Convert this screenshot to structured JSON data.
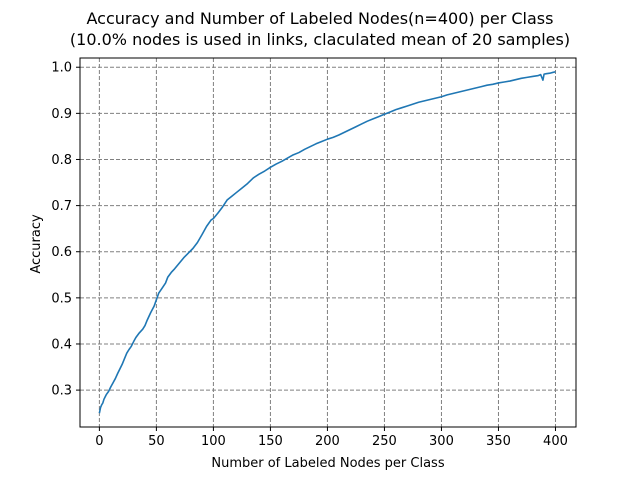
{
  "chart_data": {
    "type": "line",
    "title": "Accuracy and Number of Labeled Nodes(n=400) per Class",
    "subtitle": "(10.0% nodes is used in links, claculated mean of 20 samples)",
    "xlabel": "Number of Labeled Nodes per Class",
    "ylabel": "Accuracy",
    "xlim": [
      -17,
      418
    ],
    "ylim": [
      0.22,
      1.02
    ],
    "xticks": [
      0,
      50,
      100,
      150,
      200,
      250,
      300,
      350,
      400
    ],
    "yticks": [
      0.3,
      0.4,
      0.5,
      0.6,
      0.7,
      0.8,
      0.9,
      1.0
    ],
    "xtick_labels": [
      "0",
      "50",
      "100",
      "150",
      "200",
      "250",
      "300",
      "350",
      "400"
    ],
    "ytick_labels": [
      "0.3",
      "0.4",
      "0.5",
      "0.6",
      "0.7",
      "0.8",
      "0.9",
      "1.0"
    ],
    "grid": true,
    "line_color": "#1f77b4",
    "grid_color": "#808080",
    "series": [
      {
        "x": [
          0,
          1,
          2,
          3,
          4,
          5,
          6,
          8,
          10,
          12,
          14,
          16,
          18,
          20,
          22,
          24,
          26,
          28,
          30,
          32,
          35,
          38,
          40,
          42,
          45,
          48,
          50,
          52,
          55,
          58,
          60,
          63,
          66,
          70,
          74,
          78,
          82,
          86,
          90,
          94,
          98,
          100,
          104,
          108,
          112,
          116,
          120,
          125,
          130,
          135,
          140,
          145,
          150,
          155,
          160,
          165,
          170,
          175,
          180,
          185,
          190,
          195,
          200,
          205,
          210,
          215,
          220,
          225,
          230,
          235,
          240,
          245,
          250,
          255,
          260,
          265,
          270,
          275,
          280,
          285,
          290,
          295,
          300,
          305,
          310,
          315,
          320,
          325,
          330,
          335,
          340,
          345,
          350,
          355,
          360,
          365,
          370,
          375,
          380,
          385,
          387,
          388,
          389,
          390,
          392,
          395,
          398,
          400
        ],
        "y": [
          0.25,
          0.262,
          0.268,
          0.272,
          0.28,
          0.285,
          0.29,
          0.297,
          0.307,
          0.316,
          0.325,
          0.336,
          0.346,
          0.356,
          0.368,
          0.38,
          0.388,
          0.395,
          0.405,
          0.414,
          0.424,
          0.432,
          0.44,
          0.452,
          0.468,
          0.482,
          0.496,
          0.51,
          0.521,
          0.532,
          0.545,
          0.555,
          0.563,
          0.575,
          0.587,
          0.597,
          0.607,
          0.62,
          0.637,
          0.655,
          0.669,
          0.672,
          0.684,
          0.697,
          0.712,
          0.72,
          0.728,
          0.738,
          0.748,
          0.76,
          0.768,
          0.775,
          0.783,
          0.79,
          0.796,
          0.803,
          0.81,
          0.815,
          0.822,
          0.828,
          0.834,
          0.839,
          0.844,
          0.848,
          0.853,
          0.859,
          0.865,
          0.871,
          0.877,
          0.883,
          0.888,
          0.893,
          0.898,
          0.903,
          0.908,
          0.912,
          0.916,
          0.92,
          0.924,
          0.927,
          0.93,
          0.933,
          0.936,
          0.94,
          0.943,
          0.946,
          0.949,
          0.952,
          0.955,
          0.958,
          0.961,
          0.963,
          0.966,
          0.968,
          0.97,
          0.973,
          0.976,
          0.978,
          0.98,
          0.982,
          0.984,
          0.978,
          0.972,
          0.985,
          0.986,
          0.987,
          0.989,
          0.99
        ]
      }
    ]
  }
}
